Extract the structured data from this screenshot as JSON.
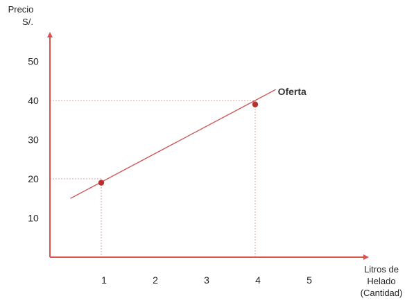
{
  "chart_data": {
    "type": "line",
    "title": "",
    "ylabel_lines": [
      "Precio",
      "S/."
    ],
    "xlabel_lines": [
      "Litros de",
      "Helado",
      "(Cantidad)"
    ],
    "x_ticks": [
      1,
      2,
      3,
      4,
      5
    ],
    "y_ticks": [
      10,
      20,
      30,
      40,
      50
    ],
    "xlim": [
      0,
      6
    ],
    "ylim": [
      0,
      60
    ],
    "grid": false,
    "series": [
      {
        "name": "Oferta",
        "line": [
          [
            0.4,
            15
          ],
          [
            4.4,
            42.8
          ]
        ],
        "points": [
          {
            "x": 1,
            "y": 19
          },
          {
            "x": 4,
            "y": 39
          }
        ]
      }
    ],
    "guides": [
      {
        "x": 1,
        "y": 20
      },
      {
        "x": 4,
        "y": 40
      }
    ],
    "colors": {
      "axis": "#d9534f",
      "line": "#cc5a5a",
      "point": "#b8312f",
      "guide": "#e6a0a0"
    }
  }
}
